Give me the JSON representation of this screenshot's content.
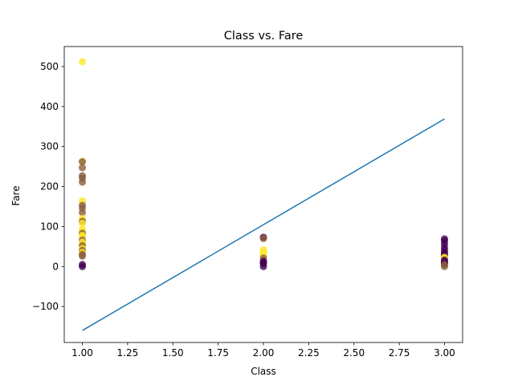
{
  "chart_data": {
    "type": "scatter",
    "title": "Class vs. Fare",
    "xlabel": "Class",
    "ylabel": "Fare",
    "xlim": [
      0.9,
      3.1
    ],
    "ylim": [
      -190,
      550
    ],
    "xticks": [
      1.0,
      1.25,
      1.5,
      1.75,
      2.0,
      2.25,
      2.5,
      2.75,
      3.0
    ],
    "xtick_labels": [
      "1.00",
      "1.25",
      "1.50",
      "1.75",
      "2.00",
      "2.25",
      "2.50",
      "2.75",
      "3.00"
    ],
    "yticks": [
      -100,
      0,
      100,
      200,
      300,
      400,
      500
    ],
    "ytick_labels": [
      "−100",
      "0",
      "100",
      "200",
      "300",
      "400",
      "500"
    ],
    "grid": false,
    "colors": {
      "yellow": "#fde725",
      "purple": "#440154",
      "mixed": "#8b5e3c",
      "line": "#1f77b4"
    },
    "scatter_points": [
      {
        "x": 1,
        "y": 512,
        "c": "yellow"
      },
      {
        "x": 1,
        "y": 263,
        "c": "yellow"
      },
      {
        "x": 1,
        "y": 262,
        "c": "mixed"
      },
      {
        "x": 1,
        "y": 247,
        "c": "mixed"
      },
      {
        "x": 1,
        "y": 227,
        "c": "mixed"
      },
      {
        "x": 1,
        "y": 221,
        "c": "mixed"
      },
      {
        "x": 1,
        "y": 211,
        "c": "mixed"
      },
      {
        "x": 1,
        "y": 164,
        "c": "yellow"
      },
      {
        "x": 1,
        "y": 153,
        "c": "mixed"
      },
      {
        "x": 1,
        "y": 146,
        "c": "mixed"
      },
      {
        "x": 1,
        "y": 135,
        "c": "mixed"
      },
      {
        "x": 1,
        "y": 120,
        "c": "yellow"
      },
      {
        "x": 1,
        "y": 113,
        "c": "mixed"
      },
      {
        "x": 1,
        "y": 108,
        "c": "yellow"
      },
      {
        "x": 1,
        "y": 93,
        "c": "yellow"
      },
      {
        "x": 1,
        "y": 86,
        "c": "yellow"
      },
      {
        "x": 1,
        "y": 83,
        "c": "mixed"
      },
      {
        "x": 1,
        "y": 78,
        "c": "yellow"
      },
      {
        "x": 1,
        "y": 75,
        "c": "yellow"
      },
      {
        "x": 1,
        "y": 66,
        "c": "mixed"
      },
      {
        "x": 1,
        "y": 61,
        "c": "yellow"
      },
      {
        "x": 1,
        "y": 55,
        "c": "yellow"
      },
      {
        "x": 1,
        "y": 52,
        "c": "mixed"
      },
      {
        "x": 1,
        "y": 45,
        "c": "yellow"
      },
      {
        "x": 1,
        "y": 40,
        "c": "mixed"
      },
      {
        "x": 1,
        "y": 35,
        "c": "yellow"
      },
      {
        "x": 1,
        "y": 30,
        "c": "mixed"
      },
      {
        "x": 1,
        "y": 26,
        "c": "mixed"
      },
      {
        "x": 1,
        "y": 5,
        "c": "purple"
      },
      {
        "x": 1,
        "y": 0,
        "c": "purple"
      },
      {
        "x": 2,
        "y": 73,
        "c": "purple"
      },
      {
        "x": 2,
        "y": 70,
        "c": "mixed"
      },
      {
        "x": 2,
        "y": 42,
        "c": "yellow"
      },
      {
        "x": 2,
        "y": 36,
        "c": "yellow"
      },
      {
        "x": 2,
        "y": 30,
        "c": "yellow"
      },
      {
        "x": 2,
        "y": 26,
        "c": "yellow"
      },
      {
        "x": 2,
        "y": 21,
        "c": "mixed"
      },
      {
        "x": 2,
        "y": 13,
        "c": "purple"
      },
      {
        "x": 2,
        "y": 10,
        "c": "purple"
      },
      {
        "x": 2,
        "y": 7,
        "c": "purple"
      },
      {
        "x": 2,
        "y": 0,
        "c": "purple"
      },
      {
        "x": 3,
        "y": 69,
        "c": "purple"
      },
      {
        "x": 3,
        "y": 64,
        "c": "purple"
      },
      {
        "x": 3,
        "y": 56,
        "c": "purple"
      },
      {
        "x": 3,
        "y": 47,
        "c": "purple"
      },
      {
        "x": 3,
        "y": 40,
        "c": "purple"
      },
      {
        "x": 3,
        "y": 34,
        "c": "purple"
      },
      {
        "x": 3,
        "y": 29,
        "c": "purple"
      },
      {
        "x": 3,
        "y": 25,
        "c": "purple"
      },
      {
        "x": 3,
        "y": 23,
        "c": "yellow"
      },
      {
        "x": 3,
        "y": 20,
        "c": "yellow"
      },
      {
        "x": 3,
        "y": 16,
        "c": "purple"
      },
      {
        "x": 3,
        "y": 12,
        "c": "purple"
      },
      {
        "x": 3,
        "y": 9,
        "c": "purple"
      },
      {
        "x": 3,
        "y": 7,
        "c": "purple"
      },
      {
        "x": 3,
        "y": 5,
        "c": "mixed"
      },
      {
        "x": 3,
        "y": 0,
        "c": "mixed"
      }
    ],
    "fit_line": {
      "x": [
        1,
        3
      ],
      "y": [
        -160,
        369
      ]
    }
  }
}
